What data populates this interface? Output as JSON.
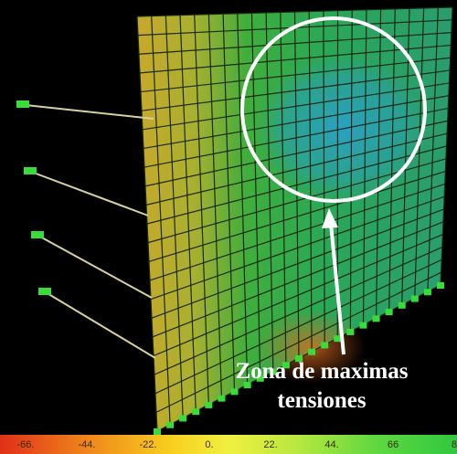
{
  "annotation": {
    "lines": [
      "Zona de maximas",
      "tensiones"
    ]
  },
  "legend": {
    "labels": [
      "-66.",
      "-44.",
      "-22.",
      "0.",
      "22.",
      "44.",
      "66",
      "8"
    ]
  }
}
